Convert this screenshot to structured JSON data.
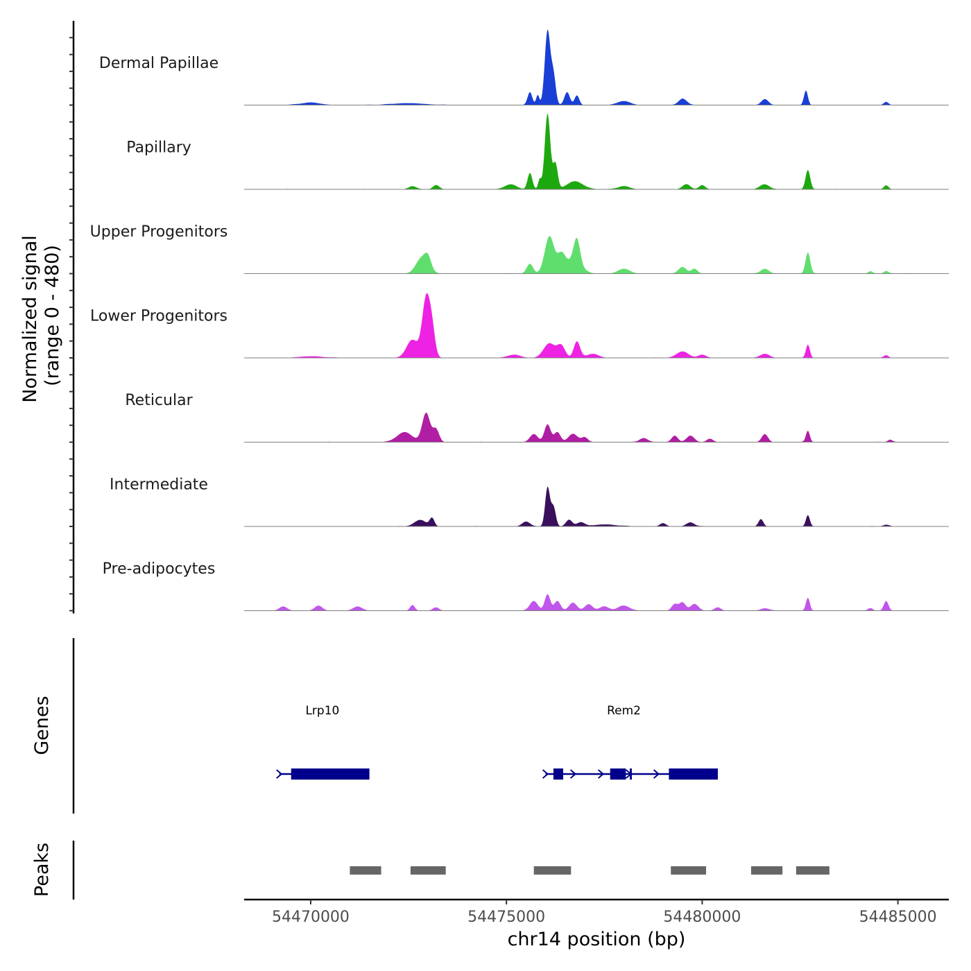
{
  "chart_data": {
    "type": "area",
    "title": "",
    "chromosome": "chr14",
    "xlabel": "chr14 position (bp)",
    "ylabel": "Normalized signal",
    "ylabel_range": "(range 0 - 480)",
    "xlim": [
      54468300,
      54486300
    ],
    "ylim": [
      0,
      480
    ],
    "x_ticks": [
      54470000,
      54475000,
      54480000,
      54485000
    ],
    "x_tick_labels": [
      "54470000",
      "54475000",
      "54480000",
      "54485000"
    ],
    "signal_extent": [
      54469000,
      54485500
    ],
    "tracks": [
      {
        "name": "Dermal Papillae",
        "color": "#1a3fd6",
        "peaks": [
          [
            54475600,
            80,
            60
          ],
          [
            54475800,
            60,
            40
          ],
          [
            54476050,
            460,
            70
          ],
          [
            54476200,
            180,
            60
          ],
          [
            54476550,
            80,
            70
          ],
          [
            54476800,
            60,
            60
          ],
          [
            54478000,
            25,
            150
          ],
          [
            54479500,
            40,
            100
          ],
          [
            54481600,
            35,
            90
          ],
          [
            54482650,
            90,
            50
          ],
          [
            54484700,
            20,
            60
          ],
          [
            54470000,
            15,
            250
          ],
          [
            54472500,
            12,
            400
          ]
        ]
      },
      {
        "name": "Papillary",
        "color": "#1ea80f",
        "peaks": [
          [
            54475100,
            30,
            150
          ],
          [
            54475600,
            100,
            60
          ],
          [
            54475850,
            60,
            40
          ],
          [
            54476050,
            470,
            70
          ],
          [
            54476250,
            160,
            60
          ],
          [
            54476750,
            50,
            200
          ],
          [
            54478000,
            20,
            150
          ],
          [
            54479600,
            30,
            100
          ],
          [
            54480000,
            25,
            80
          ],
          [
            54481600,
            30,
            120
          ],
          [
            54482700,
            120,
            60
          ],
          [
            54484700,
            25,
            60
          ],
          [
            54472600,
            20,
            100
          ],
          [
            54473200,
            25,
            80
          ]
        ]
      },
      {
        "name": "Upper Progenitors",
        "color": "#5fde6e",
        "peaks": [
          [
            54472850,
            100,
            150
          ],
          [
            54473000,
            60,
            80
          ],
          [
            54475600,
            60,
            80
          ],
          [
            54476100,
            230,
            120
          ],
          [
            54476400,
            100,
            100
          ],
          [
            54476800,
            150,
            80
          ],
          [
            54476700,
            80,
            200
          ],
          [
            54478000,
            30,
            150
          ],
          [
            54479500,
            40,
            100
          ],
          [
            54479800,
            30,
            80
          ],
          [
            54481600,
            30,
            100
          ],
          [
            54482700,
            130,
            60
          ],
          [
            54484300,
            15,
            60
          ],
          [
            54484700,
            15,
            60
          ]
        ]
      },
      {
        "name": "Lower Progenitors",
        "color": "#ee22e3",
        "peaks": [
          [
            54472600,
            110,
            150
          ],
          [
            54472950,
            360,
            100
          ],
          [
            54473100,
            150,
            80
          ],
          [
            54475200,
            20,
            150
          ],
          [
            54476100,
            90,
            150
          ],
          [
            54476400,
            70,
            100
          ],
          [
            54476800,
            100,
            80
          ],
          [
            54477200,
            25,
            150
          ],
          [
            54479500,
            40,
            150
          ],
          [
            54480000,
            20,
            100
          ],
          [
            54481600,
            25,
            120
          ],
          [
            54482700,
            80,
            50
          ],
          [
            54484700,
            15,
            60
          ],
          [
            54470000,
            10,
            300
          ]
        ]
      },
      {
        "name": "Reticular",
        "color": "#b01ea3",
        "peaks": [
          [
            54472400,
            60,
            200
          ],
          [
            54472950,
            180,
            100
          ],
          [
            54473200,
            80,
            80
          ],
          [
            54475700,
            50,
            100
          ],
          [
            54476050,
            110,
            80
          ],
          [
            54476300,
            60,
            80
          ],
          [
            54476700,
            50,
            120
          ],
          [
            54477000,
            30,
            80
          ],
          [
            54478500,
            25,
            100
          ],
          [
            54479300,
            40,
            80
          ],
          [
            54479700,
            40,
            100
          ],
          [
            54480200,
            20,
            80
          ],
          [
            54481600,
            50,
            80
          ],
          [
            54482700,
            70,
            50
          ],
          [
            54484800,
            15,
            60
          ]
        ]
      },
      {
        "name": "Intermediate",
        "color": "#3a0f5c",
        "peaks": [
          [
            54472800,
            40,
            150
          ],
          [
            54473100,
            50,
            60
          ],
          [
            54475500,
            30,
            100
          ],
          [
            54476050,
            240,
            60
          ],
          [
            54476200,
            120,
            60
          ],
          [
            54476600,
            40,
            80
          ],
          [
            54476900,
            25,
            100
          ],
          [
            54479000,
            20,
            80
          ],
          [
            54479700,
            25,
            100
          ],
          [
            54481500,
            45,
            60
          ],
          [
            54482700,
            70,
            50
          ],
          [
            54484700,
            10,
            80
          ],
          [
            54477500,
            12,
            300
          ]
        ]
      },
      {
        "name": "Pre-adipocytes",
        "color": "#c156ea",
        "peaks": [
          [
            54469300,
            25,
            100
          ],
          [
            54470200,
            30,
            100
          ],
          [
            54471200,
            25,
            120
          ],
          [
            54472600,
            35,
            60
          ],
          [
            54473200,
            20,
            80
          ],
          [
            54475700,
            60,
            100
          ],
          [
            54476050,
            100,
            70
          ],
          [
            54476300,
            60,
            80
          ],
          [
            54476700,
            50,
            100
          ],
          [
            54477100,
            40,
            100
          ],
          [
            54477500,
            25,
            120
          ],
          [
            54478000,
            30,
            150
          ],
          [
            54479300,
            40,
            80
          ],
          [
            54479500,
            50,
            80
          ],
          [
            54479800,
            40,
            100
          ],
          [
            54480400,
            20,
            80
          ],
          [
            54481600,
            15,
            100
          ],
          [
            54482700,
            80,
            50
          ],
          [
            54484700,
            60,
            60
          ],
          [
            54484300,
            15,
            60
          ]
        ]
      }
    ],
    "genes_track": {
      "label": "Genes",
      "color": "#00008b",
      "genes": [
        {
          "name": "Lrp10",
          "start": 54469200,
          "end": 54471500,
          "strand": "+",
          "exons": [
            [
              54469500,
              54471500
            ]
          ],
          "label_x": 54470300
        },
        {
          "name": "Rem2",
          "start": 54476000,
          "end": 54480400,
          "strand": "+",
          "exons": [
            [
              54476200,
              54476450
            ],
            [
              54477650,
              54478050
            ],
            [
              54478150,
              54478200
            ],
            [
              54479150,
              54480400
            ]
          ],
          "label_x": 54478000
        }
      ]
    },
    "peaks_track": {
      "label": "Peaks",
      "color": "#666666",
      "regions": [
        [
          54471000,
          54471800
        ],
        [
          54472550,
          54473450
        ],
        [
          54475700,
          54476650
        ],
        [
          54479200,
          54480100
        ],
        [
          54481250,
          54482050
        ],
        [
          54482400,
          54483250
        ]
      ]
    }
  }
}
